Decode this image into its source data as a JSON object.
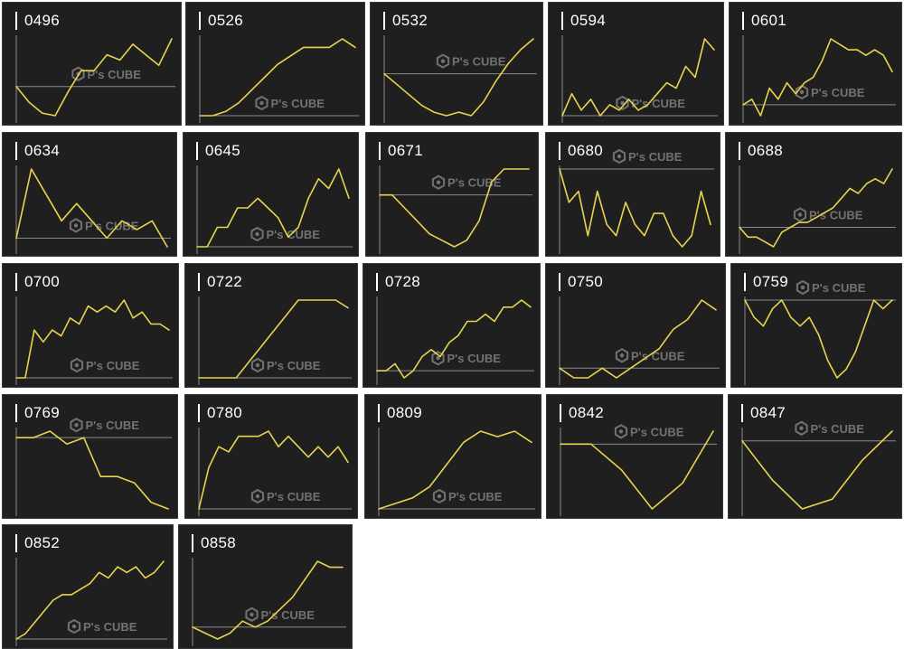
{
  "colors": {
    "panel_background": "#1f1f1f",
    "line": "#e8d44d",
    "baseline": "#8a8a8a",
    "axis": "#8a8a8a",
    "title": "#ffffff",
    "watermark": "#7c7c7c"
  },
  "watermark": {
    "icon": "hexagon-p-logo-icon",
    "brand": "P's CUBE"
  },
  "chart_data": [
    {
      "type": "line",
      "title": "0496",
      "y": [
        0,
        -3,
        -5,
        -5.5,
        -1,
        3,
        3,
        6,
        5,
        8,
        6,
        4,
        9
      ]
    },
    {
      "type": "line",
      "title": "0526",
      "y": [
        0,
        0,
        0.5,
        1.5,
        3,
        4.5,
        6,
        7,
        8,
        8,
        8,
        9,
        8
      ]
    },
    {
      "type": "line",
      "title": "0532",
      "y": [
        0,
        -3,
        -6,
        -9,
        -11,
        -12,
        -11,
        -12,
        -8,
        -2,
        3,
        7,
        10
      ]
    },
    {
      "type": "line",
      "title": "0594",
      "y": [
        0,
        4,
        1,
        3,
        0,
        2,
        1,
        3,
        1,
        2,
        4,
        6,
        5,
        9,
        7,
        14,
        12
      ]
    },
    {
      "type": "line",
      "title": "0601",
      "y": [
        0,
        1,
        -2,
        3,
        1,
        4,
        2,
        4,
        5,
        8,
        12,
        11,
        10,
        10,
        9,
        10,
        9,
        6
      ]
    },
    {
      "type": "line",
      "title": "0634",
      "y": [
        0,
        8,
        5,
        2,
        4,
        2,
        0,
        2,
        1,
        2,
        -1
      ]
    },
    {
      "type": "line",
      "title": "0645",
      "y": [
        0,
        0,
        2,
        2,
        4,
        4,
        5,
        4,
        3,
        1,
        2,
        5,
        7,
        6,
        8,
        5
      ]
    },
    {
      "type": "line",
      "title": "0671",
      "y": [
        0,
        0,
        -2,
        -4,
        -6,
        -7,
        -8,
        -7,
        -4,
        2,
        4,
        4,
        4
      ]
    },
    {
      "type": "line",
      "title": "0680",
      "y": [
        0,
        -3,
        -2,
        -6,
        -2,
        -5,
        -6,
        -3,
        -5,
        -6,
        -4,
        -4,
        -6,
        -7,
        -6,
        -2,
        -5
      ]
    },
    {
      "type": "line",
      "title": "0688",
      "y": [
        0,
        -2,
        -2,
        -3,
        -4,
        -1,
        0,
        1,
        1,
        2,
        3,
        4,
        6,
        8,
        7,
        9,
        10,
        9,
        12
      ]
    },
    {
      "type": "line",
      "title": "0700",
      "y": [
        0,
        0,
        8,
        6,
        8,
        7,
        10,
        9,
        12,
        11,
        12,
        11,
        13,
        10,
        11,
        9,
        9,
        8
      ]
    },
    {
      "type": "line",
      "title": "0722",
      "y": [
        0,
        0,
        0,
        0,
        2,
        4,
        6,
        8,
        10,
        10,
        10,
        10,
        9
      ]
    },
    {
      "type": "line",
      "title": "0728",
      "y": [
        0,
        0,
        1,
        -1,
        0,
        2,
        3,
        2,
        4,
        5,
        7,
        7,
        8,
        7,
        9,
        9,
        10,
        9
      ]
    },
    {
      "type": "line",
      "title": "0750",
      "y": [
        0,
        -1,
        -1,
        0,
        -1,
        0,
        1,
        2,
        4,
        5,
        7,
        6
      ]
    },
    {
      "type": "line",
      "title": "0759",
      "y": [
        0,
        -2,
        -3,
        -1,
        0,
        -2,
        -3,
        -2,
        -4,
        -7,
        -9,
        -8,
        -6,
        -3,
        0,
        -1,
        0
      ]
    },
    {
      "type": "line",
      "title": "0769",
      "y": [
        0,
        0,
        0.5,
        -0.5,
        0,
        -3,
        -3,
        -3.5,
        -5,
        -5.5
      ]
    },
    {
      "type": "line",
      "title": "0780",
      "y": [
        0,
        4,
        6,
        5.5,
        7,
        7,
        7,
        7.5,
        6,
        7,
        6,
        5,
        6,
        5,
        6,
        4.5
      ]
    },
    {
      "type": "line",
      "title": "0809",
      "y": [
        0,
        0.5,
        1,
        2,
        4,
        6,
        7,
        6.5,
        7,
        6
      ]
    },
    {
      "type": "line",
      "title": "0842",
      "y": [
        0,
        0,
        -2,
        -5,
        -3,
        1
      ]
    },
    {
      "type": "line",
      "title": "0847",
      "y": [
        0,
        -4,
        -7,
        -6,
        -2,
        1
      ]
    },
    {
      "type": "line",
      "title": "0852",
      "y": [
        0,
        1,
        3,
        5,
        7,
        8,
        8,
        9,
        10,
        12,
        11,
        13,
        12,
        13,
        11,
        12,
        14
      ]
    },
    {
      "type": "line",
      "title": "0858",
      "y": [
        0,
        -1,
        -2,
        -1,
        1,
        0,
        1,
        3,
        5,
        8,
        11,
        10,
        10
      ]
    }
  ]
}
